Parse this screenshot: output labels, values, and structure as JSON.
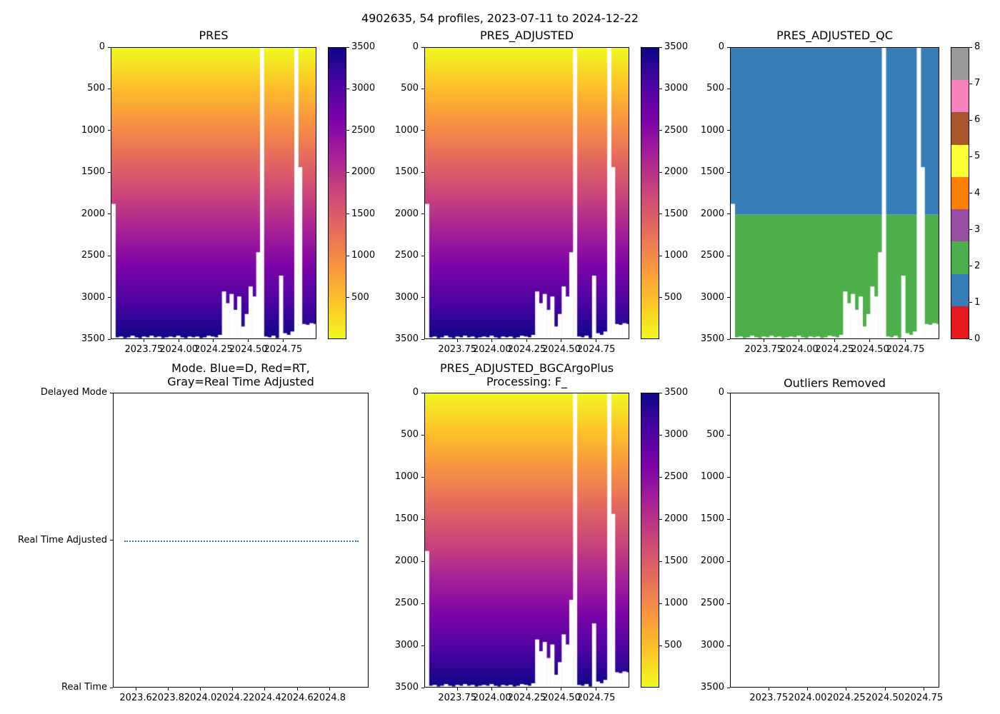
{
  "figure_title": "4902635, 54 profiles, 2023-07-11 to 2024-12-22",
  "chart_data": {
    "type": "heatmap",
    "profiles": {
      "count": 54,
      "date_start_label": "2023-07-11",
      "date_end_label": "2024-12-22",
      "x_decimal_years": [
        2023.526,
        2023.5533,
        2023.5807,
        2023.608,
        2023.6354,
        2023.6627,
        2023.6901,
        2023.7174,
        2023.7447,
        2023.7721,
        2023.7994,
        2023.8268,
        2023.8541,
        2023.8815,
        2023.9088,
        2023.9362,
        2023.9635,
        2023.9908,
        2024.0182,
        2024.0455,
        2024.0729,
        2024.1002,
        2024.1276,
        2024.1549,
        2024.1823,
        2024.2096,
        2024.2369,
        2024.2643,
        2024.2916,
        2024.319,
        2024.3463,
        2024.3737,
        2024.401,
        2024.4284,
        2024.4557,
        2024.483,
        2024.5104,
        2024.5377,
        2024.5651,
        2024.5924,
        2024.6198,
        2024.6471,
        2024.6745,
        2024.7018,
        2024.7291,
        2024.7565,
        2024.7838,
        2024.8112,
        2024.8385,
        2024.8659,
        2024.8932,
        2024.9206,
        2024.9479,
        2024.9752
      ],
      "max_pressure_dbar": [
        1870,
        3470,
        3460,
        3480,
        3470,
        3450,
        3470,
        3480,
        3460,
        3470,
        3450,
        3470,
        3460,
        3480,
        3470,
        3460,
        3470,
        3450,
        3470,
        3480,
        3460,
        3470,
        3460,
        3480,
        3470,
        3450,
        3460,
        3470,
        3440,
        2920,
        3060,
        2950,
        3140,
        2980,
        3340,
        3190,
        2860,
        2980,
        2450,
        null,
        3460,
        3470,
        3450,
        3480,
        2730,
        3420,
        3440,
        3400,
        null,
        1430,
        3310,
        3320,
        3300,
        3310
      ]
    },
    "pressure_colormap_stops_low_to_high": [
      "#f0f921",
      "#fdc328",
      "#f89441",
      "#e56b5d",
      "#cb4679",
      "#a82296",
      "#7d03a8",
      "#4b03a1",
      "#0d0887"
    ],
    "subplots": {
      "pres": {
        "title": "PRES",
        "xlim": [
          2023.512,
          2024.989
        ],
        "xticks": [
          2023.75,
          2024.0,
          2024.25,
          2024.5,
          2024.75
        ],
        "xtick_labels": [
          "2023.75",
          "2024.00",
          "2024.25",
          "2024.50",
          "2024.75"
        ],
        "yticks": [
          0,
          500,
          1000,
          1500,
          2000,
          2500,
          3000,
          3500
        ],
        "ylim": [
          3500,
          0
        ],
        "vmin": 0,
        "vmax": 3500,
        "colorbar_ticks": [
          500,
          1000,
          1500,
          2000,
          2500,
          3000,
          3500
        ]
      },
      "pres_adjusted": {
        "title": "PRES_ADJUSTED",
        "xlim": [
          2023.512,
          2024.989
        ],
        "xticks": [
          2023.75,
          2024.0,
          2024.25,
          2024.5,
          2024.75
        ],
        "xtick_labels": [
          "2023.75",
          "2024.00",
          "2024.25",
          "2024.50",
          "2024.75"
        ],
        "yticks": [
          0,
          500,
          1000,
          1500,
          2000,
          2500,
          3000,
          3500
        ],
        "ylim": [
          3500,
          0
        ],
        "vmin": 0,
        "vmax": 3500,
        "colorbar_ticks": [
          500,
          1000,
          1500,
          2000,
          2500,
          3000,
          3500
        ]
      },
      "qc": {
        "title": "PRES_ADJUSTED_QC",
        "xlim": [
          2023.512,
          2024.989
        ],
        "xticks": [
          2023.75,
          2024.0,
          2024.25,
          2024.5,
          2024.75
        ],
        "xtick_labels": [
          "2023.75",
          "2024.00",
          "2024.25",
          "2024.50",
          "2024.75"
        ],
        "yticks": [
          0,
          500,
          1000,
          1500,
          2000,
          2500,
          3000,
          3500
        ],
        "ylim": [
          3500,
          0
        ],
        "vmin": 0,
        "vmax": 3500,
        "flag_regions": [
          {
            "flag": 1,
            "color": "#377eb8",
            "depth_from": 0,
            "depth_to": 2000
          },
          {
            "flag": 2,
            "color": "#4daf4a",
            "depth_from": 2000,
            "depth_to": 3500
          }
        ],
        "colorbar": {
          "ticks": [
            0,
            1,
            2,
            3,
            4,
            5,
            6,
            7,
            8
          ],
          "colors": [
            "#e41a1c",
            "#377eb8",
            "#4daf4a",
            "#984ea3",
            "#ff7f00",
            "#ffff33",
            "#a65628",
            "#f781bf",
            "#999999"
          ],
          "vmin": 0,
          "vmax": 8
        }
      },
      "mode": {
        "title_lines": [
          "Mode. Blue=D, Red=RT,",
          "Gray=Real Time Adjusted"
        ],
        "xlim": [
          2023.458,
          2025.042
        ],
        "xticks": [
          2023.6,
          2023.8,
          2024.0,
          2024.2,
          2024.4,
          2024.6,
          2024.8
        ],
        "xtick_labels": [
          "2023.6",
          "2023.8",
          "2024.0",
          "2024.2",
          "2024.4",
          "2024.6",
          "2024.8"
        ],
        "ytick_labels": [
          "Delayed Mode",
          "Real Time Adjusted",
          "Real Time"
        ],
        "mode_line": {
          "level": "Real Time Adjusted",
          "color": "#1f77b4",
          "style": "dotted",
          "x_start": 2023.526,
          "x_end": 2024.975
        }
      },
      "bgc": {
        "title_lines": [
          "PRES_ADJUSTED_BGCArgoPlus",
          "Processing: F_"
        ],
        "xlim": [
          2023.512,
          2024.989
        ],
        "xticks": [
          2023.75,
          2024.0,
          2024.25,
          2024.5,
          2024.75
        ],
        "xtick_labels": [
          "2023.75",
          "2024.00",
          "2024.25",
          "2024.50",
          "2024.75"
        ],
        "yticks": [
          0,
          500,
          1000,
          1500,
          2000,
          2500,
          3000,
          3500
        ],
        "ylim": [
          3500,
          0
        ],
        "vmin": 0,
        "vmax": 3500,
        "colorbar_ticks": [
          500,
          1000,
          1500,
          2000,
          2500,
          3000,
          3500
        ]
      },
      "outliers": {
        "title": "Outliers Removed",
        "xlim": [
          2023.5,
          2024.85
        ],
        "xticks": [
          2023.75,
          2024.0,
          2024.25,
          2024.5,
          2024.75
        ],
        "xtick_labels": [
          "2023.75",
          "2024.00",
          "2024.25",
          "2024.50",
          "2024.75"
        ],
        "yticks": [
          0,
          500,
          1000,
          1500,
          2000,
          2500,
          3000,
          3500
        ],
        "ylim": [
          3500,
          0
        ],
        "vmin": 0,
        "vmax": 3500
      }
    }
  }
}
